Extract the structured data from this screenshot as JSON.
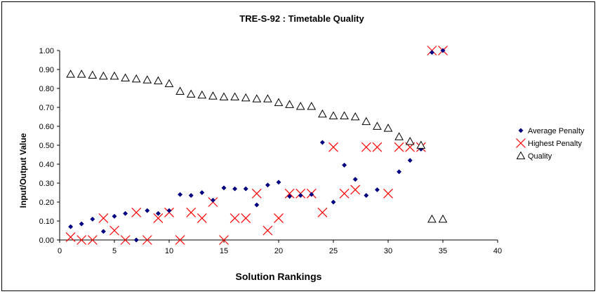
{
  "chart_data": {
    "type": "scatter",
    "title": "TRE-S-92 : Timetable Quality",
    "xlabel": "Solution Rankings",
    "ylabel": "Input/Output Value",
    "xlim": [
      0,
      40
    ],
    "ylim": [
      0,
      1
    ],
    "xticks": [
      "0",
      "5",
      "10",
      "15",
      "20",
      "25",
      "30",
      "35",
      "40"
    ],
    "yticks": [
      "0.00",
      "0.10",
      "0.20",
      "0.30",
      "0.40",
      "0.50",
      "0.60",
      "0.70",
      "0.80",
      "0.90",
      "1.00"
    ],
    "grid": false,
    "legend_position": "right",
    "series": [
      {
        "name": "Average Penalty",
        "marker": "diamond",
        "color": "#000080",
        "x": [
          1,
          2,
          3,
          4,
          5,
          6,
          7,
          8,
          9,
          10,
          11,
          12,
          13,
          14,
          15,
          16,
          17,
          18,
          19,
          20,
          21,
          22,
          23,
          24,
          25,
          26,
          27,
          28,
          29,
          30,
          31,
          32,
          33,
          34,
          35
        ],
        "y": [
          0.07,
          0.085,
          0.11,
          0.045,
          0.125,
          0.14,
          0.0,
          0.155,
          0.14,
          0.155,
          0.24,
          0.235,
          0.25,
          0.21,
          0.275,
          0.27,
          0.27,
          0.185,
          0.29,
          0.305,
          0.23,
          0.235,
          0.24,
          0.515,
          0.2,
          0.395,
          0.32,
          0.235,
          0.265,
          0.59,
          0.36,
          0.42,
          0.48,
          0.99,
          1.0
        ]
      },
      {
        "name": "Highest Penalty",
        "marker": "x",
        "color": "#ff0000",
        "x": [
          1,
          2,
          3,
          4,
          5,
          6,
          7,
          8,
          9,
          10,
          11,
          12,
          13,
          14,
          15,
          16,
          17,
          18,
          19,
          20,
          21,
          22,
          23,
          24,
          25,
          26,
          27,
          28,
          29,
          30,
          31,
          32,
          33,
          34,
          35
        ],
        "y": [
          0.015,
          0.0,
          0.0,
          0.115,
          0.05,
          0.0,
          0.145,
          0.0,
          0.115,
          0.145,
          0.0,
          0.145,
          0.115,
          0.2,
          0.0,
          0.115,
          0.115,
          0.245,
          0.05,
          0.115,
          0.245,
          0.245,
          0.245,
          0.145,
          0.49,
          0.245,
          0.265,
          0.49,
          0.49,
          0.245,
          0.49,
          0.49,
          0.49,
          1.0,
          1.0
        ]
      },
      {
        "name": "Quality",
        "marker": "triangle",
        "color": "#000000",
        "x": [
          1,
          2,
          3,
          4,
          5,
          6,
          7,
          8,
          9,
          10,
          11,
          12,
          13,
          14,
          15,
          16,
          17,
          18,
          19,
          20,
          21,
          22,
          23,
          24,
          25,
          26,
          27,
          28,
          29,
          30,
          31,
          32,
          33,
          34,
          35
        ],
        "y": [
          0.875,
          0.875,
          0.87,
          0.865,
          0.865,
          0.855,
          0.85,
          0.845,
          0.84,
          0.825,
          0.785,
          0.77,
          0.765,
          0.76,
          0.755,
          0.755,
          0.75,
          0.745,
          0.745,
          0.725,
          0.715,
          0.705,
          0.705,
          0.665,
          0.655,
          0.655,
          0.65,
          0.625,
          0.6,
          0.59,
          0.545,
          0.52,
          0.5,
          0.11,
          0.11
        ]
      }
    ]
  }
}
